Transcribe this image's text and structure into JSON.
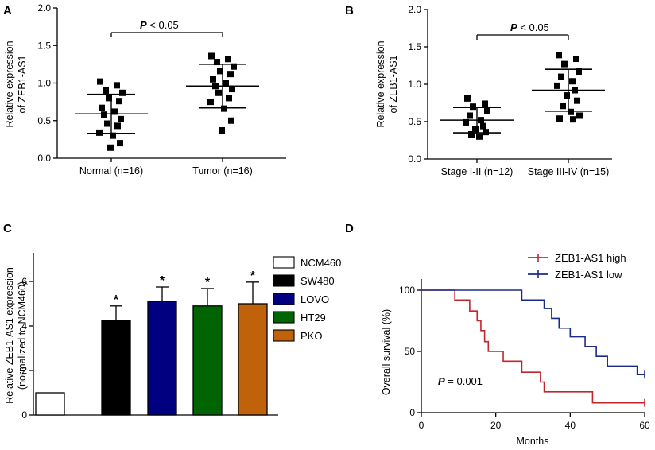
{
  "chart_data": [
    {
      "panel": "A",
      "type": "scatter",
      "ylabel": [
        "Relative expression",
        "of ZEB1-AS1"
      ],
      "ylim": [
        0,
        2.0
      ],
      "yticks": [
        "0.0",
        "0.5",
        "1.0",
        "1.5",
        "2.0"
      ],
      "categories": [
        "Normal (n=16)",
        "Tumor (n=16)"
      ],
      "points": [
        [
          1.02,
          0.97,
          0.9,
          0.87,
          0.8,
          0.76,
          0.67,
          0.62,
          0.58,
          0.52,
          0.46,
          0.43,
          0.34,
          0.3,
          0.2,
          0.14
        ],
        [
          1.36,
          1.32,
          1.28,
          1.22,
          1.16,
          1.12,
          1.05,
          1.0,
          0.96,
          0.92,
          0.87,
          0.8,
          0.75,
          0.66,
          0.5,
          0.37
        ]
      ],
      "mean": [
        0.59,
        0.96
      ],
      "sd": [
        0.26,
        0.29
      ],
      "annotation": {
        "P": "P",
        "rest": "< 0.05"
      }
    },
    {
      "panel": "B",
      "type": "scatter",
      "ylabel": [
        "Relative expression",
        "of ZEB1-AS1"
      ],
      "ylim": [
        0,
        2.0
      ],
      "yticks": [
        "0.0",
        "0.5",
        "1.0",
        "1.5",
        "2.0"
      ],
      "categories": [
        "Stage I-II (n=12)",
        "Stage III-IV (n=15)"
      ],
      "points": [
        [
          0.81,
          0.74,
          0.7,
          0.64,
          0.58,
          0.52,
          0.49,
          0.44,
          0.4,
          0.36,
          0.33,
          0.3
        ],
        [
          1.39,
          1.34,
          1.27,
          1.17,
          1.1,
          1.04,
          0.98,
          0.92,
          0.85,
          0.78,
          0.71,
          0.63,
          0.58,
          0.54,
          0.53
        ]
      ],
      "mean": [
        0.52,
        0.92
      ],
      "sd": [
        0.17,
        0.28
      ],
      "annotation": {
        "P": "P",
        "rest": "< 0.05"
      }
    },
    {
      "panel": "C",
      "type": "bar",
      "ylabel": [
        "Relative ZEB1-AS1 expression",
        "(normalized to NCM460)"
      ],
      "ylim": [
        0,
        8
      ],
      "yticks": [
        "0",
        "2",
        "4",
        "6"
      ],
      "categories": [
        "NCM460",
        "SW480",
        "LOVO",
        "HT29",
        "PKO"
      ],
      "values": [
        1.0,
        4.25,
        5.1,
        4.9,
        5.0
      ],
      "errors": [
        0,
        0.65,
        0.65,
        0.78,
        0.97
      ],
      "significance": [
        "",
        "*",
        "*",
        "*",
        "*"
      ],
      "colors": [
        "#ffffff",
        "#000000",
        "#000080",
        "#006400",
        "#c0620a"
      ],
      "legend": [
        "NCM460",
        "SW480",
        "LOVO",
        "HT29",
        "PKO"
      ]
    },
    {
      "panel": "D",
      "type": "line",
      "xlabel": "Months",
      "ylabel": "Overall survival (%)",
      "xlim": [
        0,
        60
      ],
      "ylim": [
        0,
        100
      ],
      "xticks": [
        "0",
        "20",
        "40",
        "60"
      ],
      "yticks": [
        "0",
        "50",
        "100"
      ],
      "series": [
        {
          "name": "ZEB1-AS1 high",
          "color": "#c0262c",
          "steps": [
            [
              0,
              100
            ],
            [
              9,
              92
            ],
            [
              13,
              83
            ],
            [
              15,
              75
            ],
            [
              16,
              67
            ],
            [
              17,
              58
            ],
            [
              18,
              50
            ],
            [
              22,
              42
            ],
            [
              27,
              33
            ],
            [
              32,
              25
            ],
            [
              33,
              17
            ],
            [
              46,
              8
            ],
            [
              60,
              8
            ]
          ]
        },
        {
          "name": "ZEB1-AS1 low",
          "color": "#1a2a8c",
          "steps": [
            [
              0,
              100
            ],
            [
              27,
              92
            ],
            [
              33,
              85
            ],
            [
              35,
              77
            ],
            [
              37,
              69
            ],
            [
              40,
              62
            ],
            [
              44,
              54
            ],
            [
              47,
              46
            ],
            [
              50,
              38
            ],
            [
              58,
              31
            ],
            [
              60,
              31
            ]
          ]
        }
      ],
      "annotation": {
        "P": "P",
        "rest": "= 0.001"
      }
    }
  ]
}
